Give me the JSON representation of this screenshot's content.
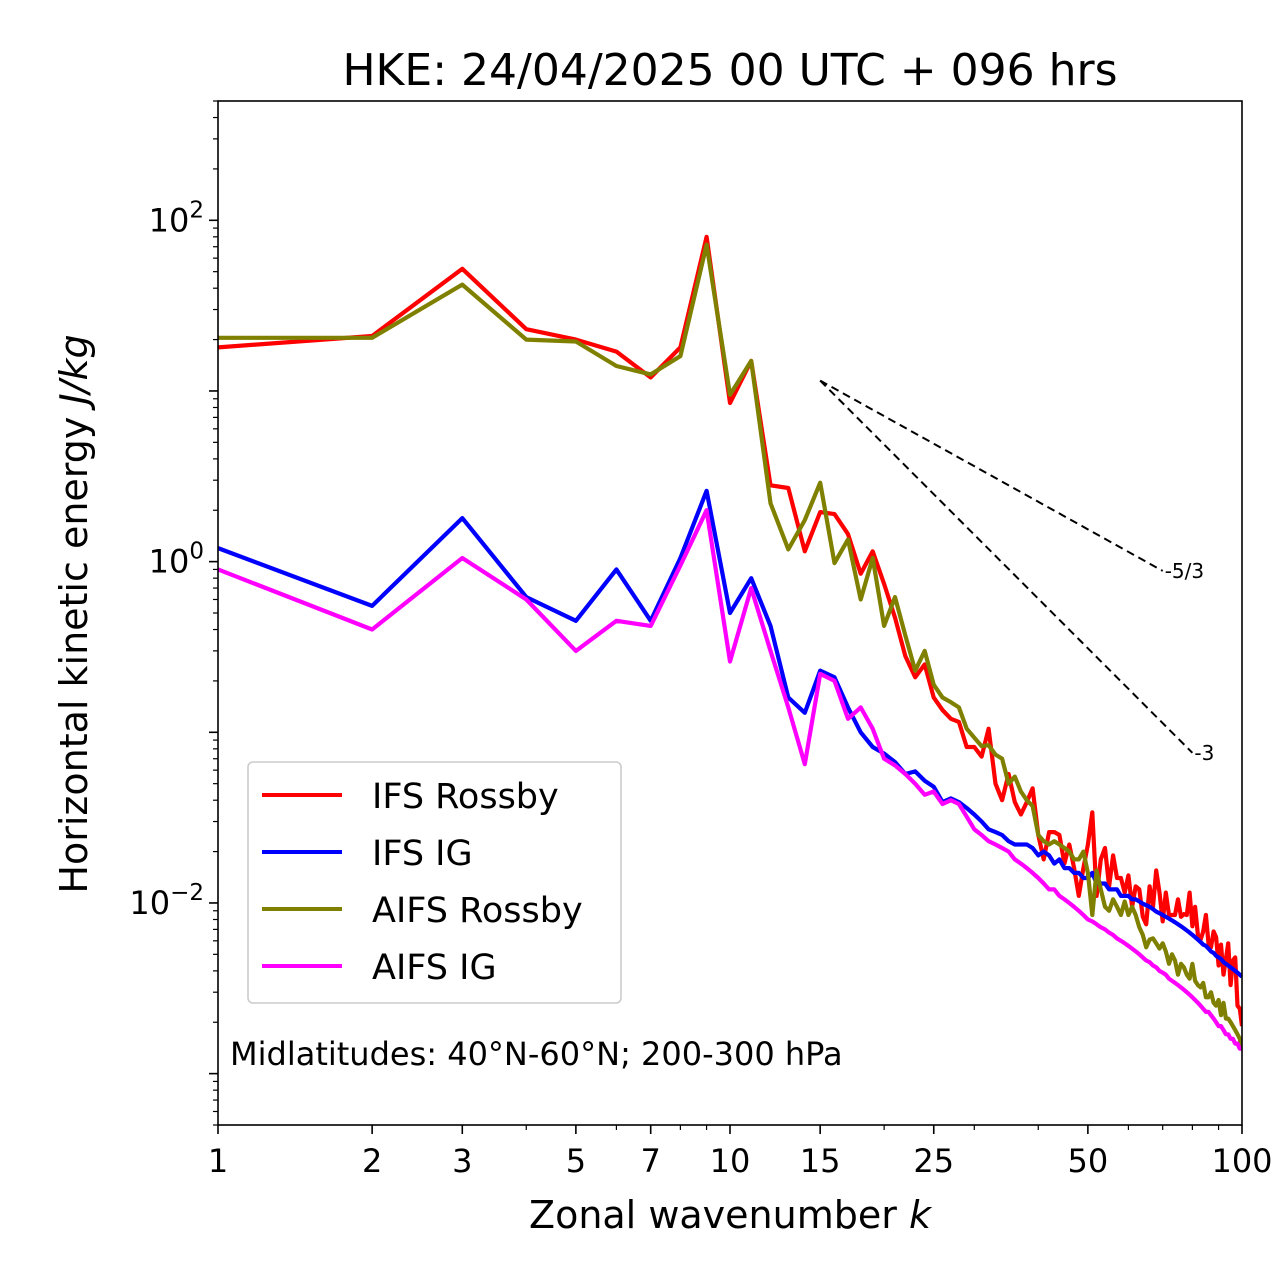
{
  "chart_data": {
    "type": "line",
    "title": "HKE: 24/04/2025 00 UTC + 096 hrs",
    "xlabel": "Zonal wavenumber",
    "xlabel_var": "k",
    "ylabel": "Horizontal kinetic energy",
    "ylabel_unit": "J/kg",
    "xscale": "log",
    "yscale": "log",
    "xlim": [
      1,
      100
    ],
    "ylim": [
      0.0005,
      500
    ],
    "xticks": [
      {
        "value": 1,
        "label": "1"
      },
      {
        "value": 2,
        "label": "2"
      },
      {
        "value": 3,
        "label": "3"
      },
      {
        "value": 5,
        "label": "5"
      },
      {
        "value": 7,
        "label": "7"
      },
      {
        "value": 10,
        "label": "10"
      },
      {
        "value": 15,
        "label": "15"
      },
      {
        "value": 25,
        "label": "25"
      },
      {
        "value": 50,
        "label": "50"
      },
      {
        "value": 100,
        "label": "100"
      }
    ],
    "yticks": [
      {
        "value": 100,
        "base": "10",
        "exp": "2"
      },
      {
        "value": 1,
        "base": "10",
        "exp": "0"
      },
      {
        "value": 0.01,
        "base": "10",
        "exp": "−2"
      }
    ],
    "annotation": "Midlatitudes: 40°N-60°N; 200-300 hPa",
    "legend_position": "lower-left",
    "reference_lines": [
      {
        "label": "-5/3",
        "slope": -1.6667,
        "x": [
          15,
          70
        ],
        "y0": 11.5
      },
      {
        "label": "-3",
        "slope": -3,
        "x": [
          15,
          80
        ],
        "y0": 11.5
      }
    ],
    "series": [
      {
        "name": "IFS Rossby",
        "color": "#ff0000",
        "values": [
          18,
          21,
          52,
          23,
          20,
          17,
          12,
          18,
          80,
          8.5,
          15,
          2.8,
          2.7,
          1.15,
          1.95,
          1.9,
          1.45,
          0.85,
          1.15,
          0.74,
          0.47,
          0.28,
          0.21,
          0.25,
          0.16,
          0.135,
          0.12,
          0.115,
          0.082,
          0.082,
          0.072,
          0.105,
          0.05,
          0.04,
          0.057,
          0.039,
          0.033,
          0.039,
          0.047,
          0.025,
          0.018,
          0.026,
          0.026,
          0.025,
          0.017,
          0.022,
          0.016,
          0.011,
          0.016,
          0.022,
          0.034,
          0.011,
          0.018,
          0.021,
          0.0125,
          0.019,
          0.014,
          0.014,
          0.0115,
          0.0145,
          0.0095,
          0.0125,
          0.012,
          0.0083,
          0.0075,
          0.0125,
          0.0095,
          0.0155,
          0.0115,
          0.0078,
          0.0115,
          0.0085,
          0.0085,
          0.0085,
          0.0105,
          0.0083,
          0.0086,
          0.0085,
          0.0115,
          0.0073,
          0.0095,
          0.0065,
          0.0061,
          0.0068,
          0.0085,
          0.0058,
          0.0055,
          0.0068,
          0.0063,
          0.0043,
          0.0057,
          0.0038,
          0.0047,
          0.0058,
          0.0033,
          0.0046,
          0.0048,
          0.0025,
          0.0024,
          0.0019
        ]
      },
      {
        "name": "IFS IG",
        "color": "#0000ff",
        "values": [
          1.2,
          0.55,
          1.8,
          0.62,
          0.45,
          0.9,
          0.45,
          1.05,
          2.6,
          0.5,
          0.8,
          0.42,
          0.16,
          0.13,
          0.23,
          0.21,
          0.14,
          0.1,
          0.082,
          0.075,
          0.067,
          0.057,
          0.059,
          0.052,
          0.048,
          0.039,
          0.041,
          0.039,
          0.036,
          0.033,
          0.03,
          0.027,
          0.026,
          0.025,
          0.023,
          0.022,
          0.022,
          0.022,
          0.021,
          0.019,
          0.02,
          0.019,
          0.017,
          0.018,
          0.016,
          0.016,
          0.015,
          0.015,
          0.014,
          0.014,
          0.015,
          0.013,
          0.013,
          0.013,
          0.012,
          0.012,
          0.012,
          0.011,
          0.011,
          0.011,
          0.0105,
          0.0105,
          0.0102,
          0.0099,
          0.0097,
          0.0095,
          0.0092,
          0.0089,
          0.0087,
          0.0085,
          0.0083,
          0.0081,
          0.0079,
          0.0077,
          0.0075,
          0.0073,
          0.0071,
          0.0069,
          0.0067,
          0.0065,
          0.0063,
          0.0061,
          0.0059,
          0.0057,
          0.0056,
          0.0054,
          0.0052,
          0.0051,
          0.0049,
          0.0048,
          0.0047,
          0.0045,
          0.0044,
          0.0043,
          0.0042,
          0.0041,
          0.004,
          0.0039,
          0.0038,
          0.0037
        ]
      },
      {
        "name": "AIFS Rossby",
        "color": "#808000",
        "values": [
          20.5,
          20.5,
          42,
          20,
          19.5,
          14,
          12.5,
          16,
          72,
          9.5,
          15,
          2.2,
          1.18,
          1.75,
          2.9,
          0.98,
          1.35,
          0.6,
          1.05,
          0.42,
          0.62,
          0.37,
          0.23,
          0.3,
          0.19,
          0.16,
          0.15,
          0.14,
          0.105,
          0.093,
          0.083,
          0.084,
          0.074,
          0.07,
          0.05,
          0.055,
          0.045,
          0.04,
          0.037,
          0.025,
          0.023,
          0.022,
          0.023,
          0.022,
          0.021,
          0.02,
          0.018,
          0.018,
          0.02,
          0.015,
          0.0085,
          0.0155,
          0.012,
          0.0095,
          0.009,
          0.0105,
          0.0095,
          0.0085,
          0.0102,
          0.0085,
          0.0095,
          0.0085,
          0.0072,
          0.0065,
          0.0055,
          0.0061,
          0.0062,
          0.0058,
          0.0054,
          0.0058,
          0.0052,
          0.0044,
          0.005,
          0.0046,
          0.0038,
          0.0044,
          0.0042,
          0.0038,
          0.0036,
          0.0044,
          0.0035,
          0.0033,
          0.0032,
          0.0034,
          0.0028,
          0.0028,
          0.003,
          0.0026,
          0.0025,
          0.0027,
          0.0022,
          0.0026,
          0.0021,
          0.0021,
          0.002,
          0.0019,
          0.0018,
          0.0017,
          0.0016,
          0.0014
        ]
      },
      {
        "name": "AIFS IG",
        "color": "#ff00ff",
        "values": [
          0.9,
          0.4,
          1.05,
          0.6,
          0.3,
          0.45,
          0.42,
          0.95,
          2.0,
          0.26,
          0.7,
          0.3,
          0.14,
          0.065,
          0.22,
          0.2,
          0.12,
          0.14,
          0.105,
          0.07,
          0.064,
          0.057,
          0.05,
          0.043,
          0.045,
          0.038,
          0.04,
          0.038,
          0.032,
          0.027,
          0.025,
          0.023,
          0.022,
          0.021,
          0.02,
          0.018,
          0.017,
          0.016,
          0.015,
          0.014,
          0.013,
          0.012,
          0.012,
          0.011,
          0.0105,
          0.01,
          0.0095,
          0.009,
          0.0085,
          0.008,
          0.0078,
          0.0075,
          0.0072,
          0.007,
          0.0067,
          0.0065,
          0.0062,
          0.006,
          0.0058,
          0.0056,
          0.0054,
          0.0052,
          0.005,
          0.0048,
          0.0046,
          0.0045,
          0.0043,
          0.0042,
          0.004,
          0.0039,
          0.0038,
          0.0036,
          0.0035,
          0.0034,
          0.0033,
          0.0032,
          0.0031,
          0.003,
          0.0029,
          0.0028,
          0.0027,
          0.0026,
          0.0025,
          0.0024,
          0.0023,
          0.0023,
          0.0022,
          0.0021,
          0.002,
          0.0019,
          0.0019,
          0.0018,
          0.0017,
          0.0017,
          0.0016,
          0.0016,
          0.0015,
          0.0015,
          0.0014,
          0.0014
        ]
      }
    ]
  }
}
